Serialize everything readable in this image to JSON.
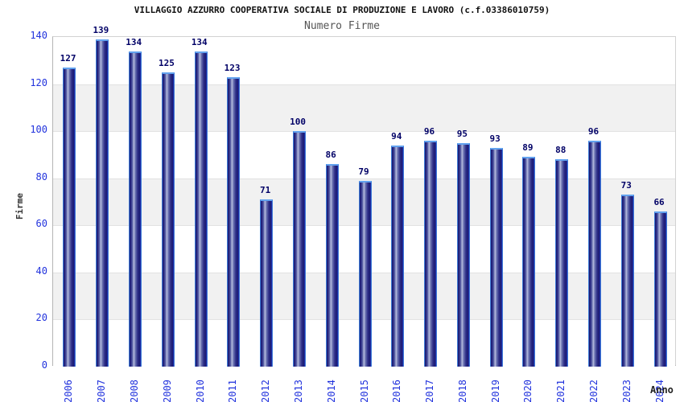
{
  "chart_data": {
    "type": "bar",
    "title": "VILLAGGIO AZZURRO COOPERATIVA SOCIALE DI PRODUZIONE E LAVORO (c.f.03386010759)",
    "subtitle": "Numero Firme",
    "xlabel": "Anno",
    "ylabel": "Firme",
    "categories": [
      "2006",
      "2007",
      "2008",
      "2009",
      "2010",
      "2011",
      "2012",
      "2013",
      "2014",
      "2015",
      "2016",
      "2017",
      "2018",
      "2019",
      "2020",
      "2021",
      "2022",
      "2023",
      "2024"
    ],
    "values": [
      127,
      139,
      134,
      125,
      134,
      123,
      71,
      100,
      86,
      79,
      94,
      96,
      95,
      93,
      89,
      88,
      96,
      73,
      66
    ],
    "ylim": [
      0,
      140
    ],
    "ytick_step": 20,
    "yticks": [
      0,
      20,
      40,
      60,
      80,
      100,
      120,
      140
    ],
    "grid": "horizontal-bands",
    "legend": "none",
    "colors": {
      "bar_dark": "#1a1a72",
      "bar_light": "#b7bddf",
      "bar_outline": "#3d7bd6",
      "bar_top_edge": "#62a2ef",
      "value_label": "#000066",
      "tick_label": "#2233dd",
      "title": "#111111",
      "subtitle": "#555555",
      "band_gray": "#f1f1f1",
      "band_white": "#ffffff",
      "plot_border": "#d2d2d2"
    }
  }
}
